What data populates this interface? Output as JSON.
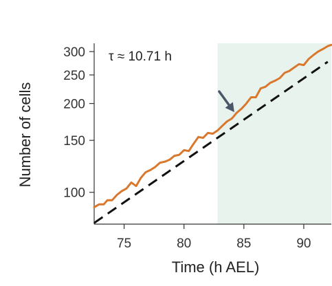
{
  "chart_data": {
    "type": "line",
    "xlabel": "Time (h AEL)",
    "ylabel": "Number of cells",
    "annotation": "τ ≈ 10.71 h",
    "y_scale": "log",
    "xlim": [
      72.5,
      92.3
    ],
    "ylim": [
      78,
      320
    ],
    "x_ticks": [
      75,
      80,
      85,
      90
    ],
    "y_ticks": [
      100,
      150,
      200,
      250,
      300
    ],
    "x_tick_labels": [
      "75",
      "80",
      "85",
      "90"
    ],
    "y_tick_labels": [
      "100",
      "150",
      "200",
      "250",
      "300"
    ],
    "shaded_region": {
      "x_start": 82.8,
      "x_end": 92.3,
      "color": "#e8f3ee"
    },
    "arrow": {
      "points_to": {
        "x": 84.2,
        "y": 187
      },
      "color": "#4a5868"
    },
    "series": [
      {
        "style": "line",
        "color": "#d9782d",
        "x": [
          72.5,
          72.9,
          73.3,
          73.6,
          74.0,
          74.4,
          74.8,
          75.2,
          75.6,
          76.0,
          76.4,
          76.8,
          77.2,
          77.6,
          78.0,
          78.4,
          78.8,
          79.2,
          79.6,
          80.0,
          80.4,
          80.8,
          81.2,
          81.6,
          82.0,
          82.4,
          82.8,
          83.2,
          83.6,
          84.0,
          84.4,
          84.8,
          85.2,
          85.6,
          86.0,
          86.4,
          86.8,
          87.2,
          87.6,
          88.0,
          88.4,
          88.8,
          89.2,
          89.6,
          90.0,
          90.4,
          90.8,
          91.2,
          91.6,
          92.0,
          92.3
        ],
        "values": [
          89,
          91,
          91,
          94,
          94,
          98,
          101,
          103,
          108,
          105,
          112,
          117,
          119,
          122,
          126,
          127,
          129,
          133,
          134,
          139,
          138,
          146,
          154,
          153,
          159,
          158,
          162,
          168,
          174,
          178,
          186,
          192,
          200,
          210,
          210,
          225,
          228,
          235,
          239,
          244,
          254,
          258,
          265,
          272,
          270,
          283,
          292,
          300,
          306,
          313,
          316
        ]
      },
      {
        "style": "dashed",
        "color": "#111111",
        "x": [
          72.5,
          92.0
        ],
        "values": [
          78.7,
          277
        ]
      }
    ]
  }
}
